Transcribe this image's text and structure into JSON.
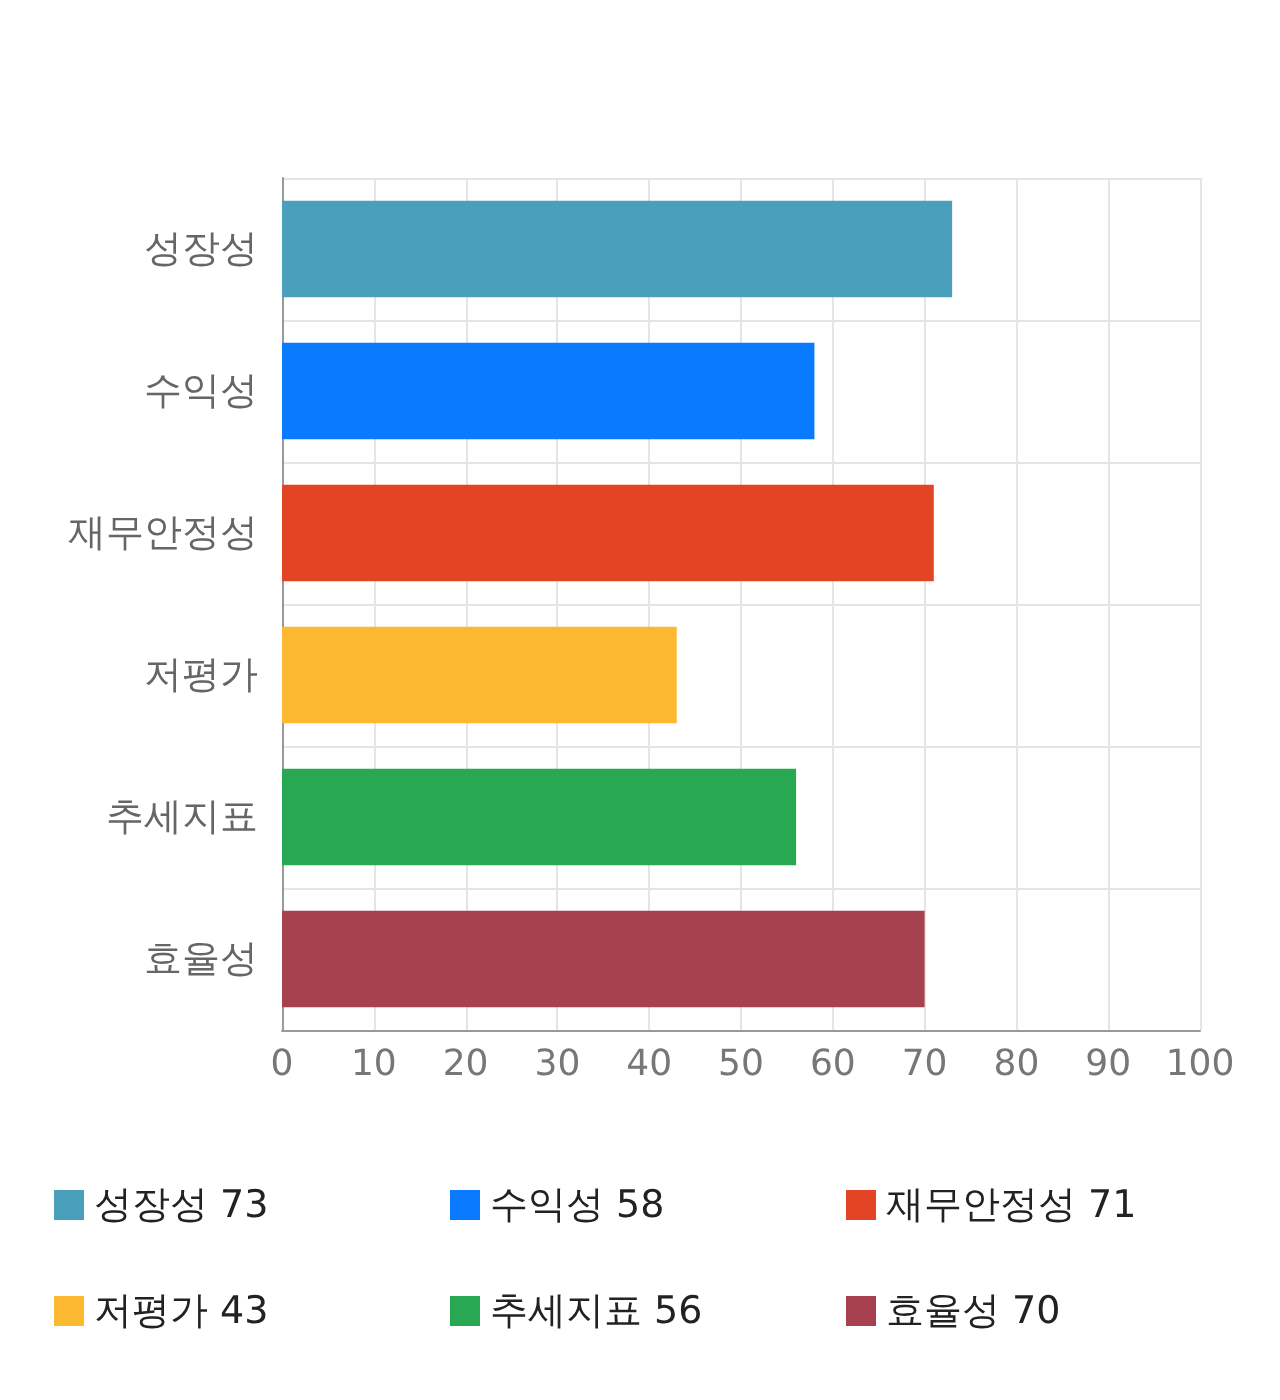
{
  "chart_data": {
    "type": "bar",
    "orientation": "horizontal",
    "stacked": true,
    "categories": [
      "성장성",
      "수익성",
      "재무안정성",
      "저평가",
      "추세지표",
      "효율성"
    ],
    "series": [
      {
        "name": "성장성 73",
        "color": "#4aa0bb",
        "values": [
          73,
          null,
          null,
          null,
          null,
          null
        ]
      },
      {
        "name": "수익성 58",
        "color": "#0a7bff",
        "values": [
          null,
          58,
          null,
          null,
          null,
          null
        ]
      },
      {
        "name": "재무안정성 71",
        "color": "#e34424",
        "values": [
          null,
          null,
          71,
          null,
          null,
          null
        ]
      },
      {
        "name": "저평가 43",
        "color": "#fdb832",
        "values": [
          null,
          null,
          null,
          43,
          null,
          null
        ]
      },
      {
        "name": "추세지표 56",
        "color": "#29a854",
        "values": [
          null,
          null,
          null,
          null,
          56,
          null
        ]
      },
      {
        "name": "효율성 70",
        "color": "#a8414f",
        "values": [
          null,
          null,
          null,
          null,
          null,
          70
        ]
      }
    ],
    "xlim": [
      0,
      100
    ],
    "xticks": [
      0,
      10,
      20,
      30,
      40,
      50,
      60,
      70,
      80,
      90,
      100
    ],
    "grid": true,
    "legend": "bottom"
  }
}
